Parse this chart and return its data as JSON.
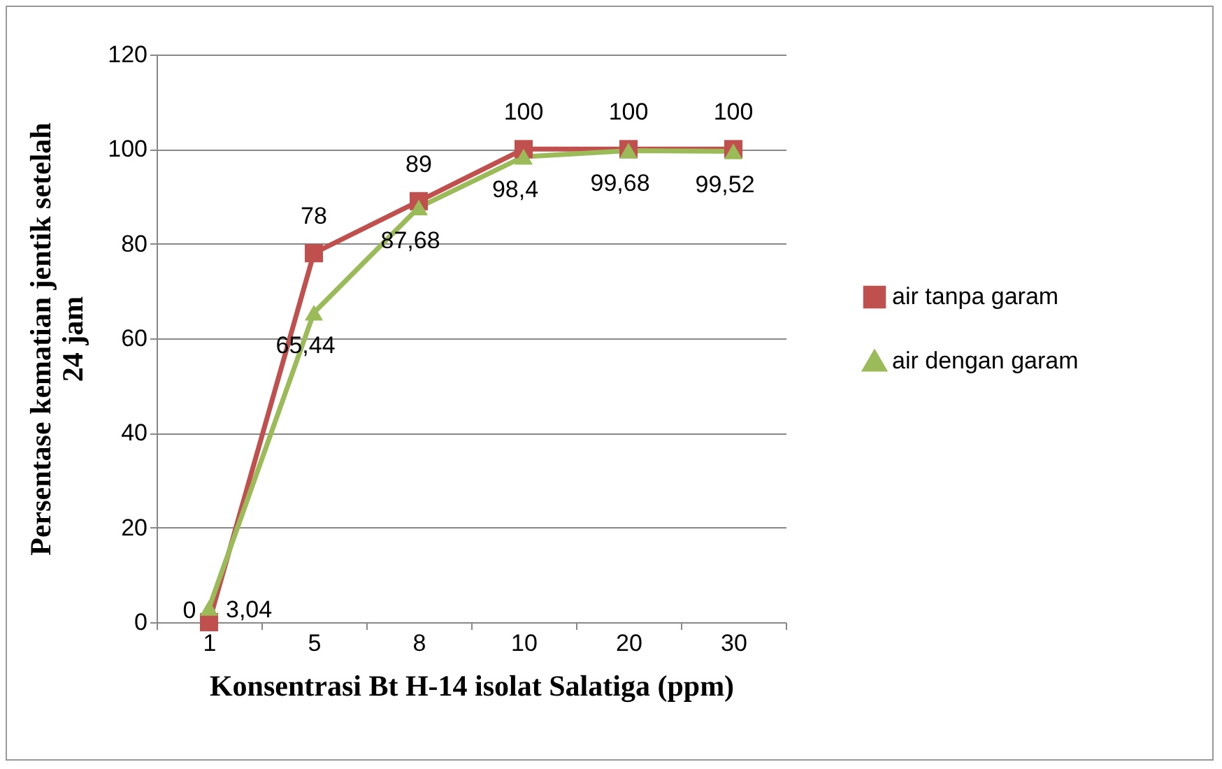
{
  "chart_data": {
    "type": "line",
    "xlabel": "Konsentrasi Bt H-14 isolat Salatiga (ppm)",
    "ylabel": "Persentase kematian jentik setelah 24 jam",
    "categories": [
      "1",
      "5",
      "8",
      "10",
      "20",
      "30"
    ],
    "series": [
      {
        "name": "air tanpa garam",
        "color": "#c0504d",
        "marker": "square",
        "values": [
          0,
          78,
          89,
          100,
          100,
          100
        ],
        "value_labels": [
          "0",
          "78",
          "89",
          "100",
          "100",
          "100"
        ]
      },
      {
        "name": "air dengan garam",
        "color": "#9bbb59",
        "marker": "triangle",
        "values": [
          3.04,
          65.44,
          87.68,
          98.4,
          99.68,
          99.52
        ],
        "value_labels": [
          "3,04",
          "65,44",
          "87,68",
          "98,4",
          "99,68",
          "99,52"
        ]
      }
    ],
    "ylim": [
      0,
      120
    ],
    "yticks": [
      0,
      20,
      40,
      60,
      80,
      100,
      120
    ],
    "grid": "y",
    "legend": "right",
    "line_style": "solid"
  }
}
